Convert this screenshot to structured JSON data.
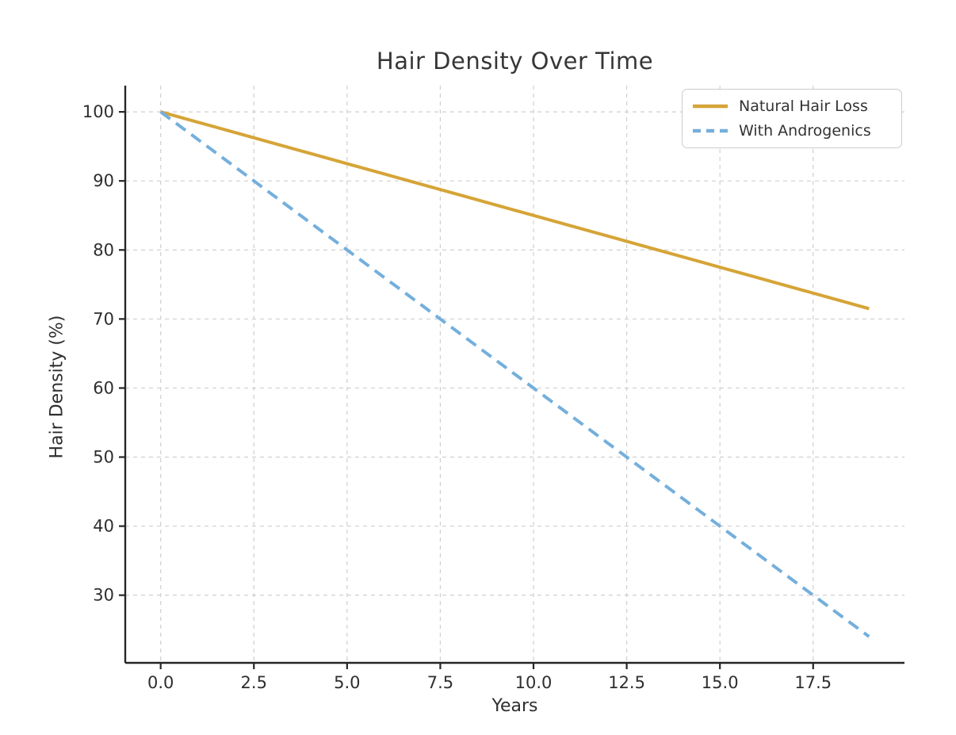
{
  "chart_data": {
    "type": "line",
    "title": "Hair Density Over Time",
    "xlabel": "Years",
    "ylabel": "Hair Density (%)",
    "x": [
      0,
      1,
      2,
      3,
      4,
      5,
      6,
      7,
      8,
      9,
      10,
      11,
      12,
      13,
      14,
      15,
      16,
      17,
      18,
      19
    ],
    "series": [
      {
        "name": "Natural Hair Loss",
        "color": "#D6A437",
        "style": "solid",
        "values": [
          100,
          98.5,
          97,
          95.5,
          94,
          92.5,
          91,
          89.5,
          88,
          86.5,
          85,
          83.5,
          82,
          80.5,
          79,
          77.5,
          76,
          74.5,
          73,
          71.5
        ]
      },
      {
        "name": "With Androgenics",
        "color": "#74AFDC",
        "style": "dashed",
        "values": [
          100,
          96,
          92,
          88,
          84,
          80,
          76,
          72,
          68,
          64,
          60,
          56,
          52,
          48,
          44,
          40,
          36,
          32,
          28,
          24
        ]
      }
    ],
    "xlim": [
      -0.95,
      19.95
    ],
    "ylim": [
      20.2,
      103.8
    ],
    "xticks": [
      0,
      2.5,
      5,
      7.5,
      10,
      12.5,
      15,
      17.5
    ],
    "xtick_labels": [
      "0.0",
      "2.5",
      "5.0",
      "7.5",
      "10.0",
      "12.5",
      "15.0",
      "17.5"
    ],
    "yticks": [
      30,
      40,
      50,
      60,
      70,
      80,
      90,
      100
    ],
    "ytick_labels": [
      "30",
      "40",
      "50",
      "60",
      "70",
      "80",
      "90",
      "100"
    ],
    "grid": true,
    "grid_color": "#cfcfcf",
    "grid_dash": "5 5",
    "spine_color": "#262626",
    "legend_position": "upper right"
  }
}
